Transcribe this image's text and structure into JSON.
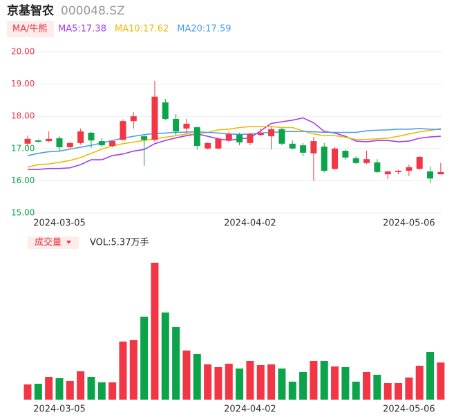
{
  "header": {
    "name": "京基智农",
    "code": "000048.SZ"
  },
  "chart_data": [
    {
      "type": "candlestick",
      "legend_title": "MA/牛熊",
      "up_color": "#f23645",
      "down_color": "#0ba44a",
      "categories": [
        null,
        null,
        null,
        "2024-03-05",
        null,
        null,
        null,
        null,
        null,
        null,
        null,
        null,
        null,
        null,
        null,
        null,
        null,
        null,
        null,
        null,
        null,
        "2024-04-02",
        null,
        null,
        null,
        null,
        null,
        null,
        null,
        null,
        null,
        null,
        null,
        null,
        null,
        null,
        "2024-05-06",
        null,
        null,
        null
      ],
      "open": [
        17.15,
        17.25,
        17.23,
        17.32,
        17.04,
        17.17,
        17.49,
        17.23,
        17.08,
        17.27,
        17.85,
        17.38,
        17.27,
        18.43,
        17.92,
        17.62,
        17.66,
        17.0,
        17.0,
        17.27,
        17.43,
        17.17,
        17.42,
        17.38,
        17.6,
        17.15,
        17.1,
        16.85,
        17.06,
        16.37,
        16.93,
        16.7,
        16.55,
        16.57,
        16.2,
        16.27,
        16.31,
        16.37,
        16.29,
        16.2
      ],
      "high": [
        17.4,
        17.28,
        17.53,
        17.38,
        17.21,
        17.62,
        17.51,
        17.32,
        17.25,
        17.9,
        18.13,
        17.42,
        19.1,
        18.54,
        18.07,
        17.92,
        17.68,
        17.19,
        17.34,
        17.53,
        17.49,
        17.49,
        17.62,
        17.66,
        17.64,
        17.25,
        17.17,
        17.36,
        17.17,
        17.04,
        16.97,
        16.76,
        16.93,
        16.67,
        16.31,
        16.33,
        16.5,
        16.76,
        16.44,
        16.55
      ],
      "low": [
        17.06,
        17.18,
        17.19,
        16.93,
        17.0,
        17.12,
        17.02,
        17.06,
        17.04,
        17.25,
        17.62,
        16.46,
        17.2,
        17.88,
        17.42,
        17.47,
        16.97,
        16.97,
        16.97,
        17.19,
        17.1,
        17.1,
        17.38,
        16.97,
        17.1,
        16.97,
        16.76,
        16.0,
        16.26,
        16.33,
        16.65,
        16.52,
        16.52,
        16.24,
        16.05,
        16.2,
        16.14,
        16.33,
        15.92,
        16.2
      ],
      "close": [
        17.3,
        17.21,
        17.3,
        17.04,
        17.17,
        17.53,
        17.25,
        17.1,
        17.23,
        17.85,
        18.0,
        17.27,
        18.61,
        17.92,
        17.53,
        17.77,
        17.08,
        17.17,
        17.3,
        17.45,
        17.19,
        17.45,
        17.49,
        17.6,
        17.15,
        17.0,
        16.87,
        17.23,
        16.31,
        17.0,
        16.72,
        16.55,
        16.67,
        16.27,
        16.29,
        16.31,
        16.42,
        16.74,
        16.07,
        16.27
      ],
      "series": [
        {
          "name": "MA5:17.38",
          "color": "#a23be8",
          "values": [
            16.35,
            16.35,
            16.38,
            16.38,
            16.4,
            16.5,
            16.65,
            16.65,
            16.78,
            16.83,
            16.92,
            16.97,
            17.15,
            17.25,
            17.33,
            17.4,
            17.45,
            17.38,
            17.3,
            17.25,
            17.3,
            17.33,
            17.55,
            17.78,
            17.83,
            17.88,
            17.95,
            17.8,
            17.53,
            17.48,
            17.38,
            17.23,
            17.21,
            17.25,
            17.25,
            17.21,
            17.23,
            17.32,
            17.36,
            17.38
          ]
        },
        {
          "name": "MA10:17.62",
          "color": "#f2b705",
          "values": [
            16.42,
            16.5,
            16.52,
            16.57,
            16.63,
            16.72,
            16.85,
            16.98,
            17.08,
            17.15,
            17.2,
            17.25,
            17.3,
            17.35,
            17.4,
            17.45,
            17.45,
            17.5,
            17.58,
            17.6,
            17.65,
            17.68,
            17.68,
            17.68,
            17.65,
            17.65,
            17.55,
            17.45,
            17.4,
            17.4,
            17.35,
            17.28,
            17.28,
            17.3,
            17.32,
            17.38,
            17.45,
            17.52,
            17.56,
            17.62
          ]
        },
        {
          "name": "MA20:17.59",
          "color": "#4a9ee8",
          "values": [
            16.78,
            16.85,
            16.9,
            16.92,
            16.98,
            17.04,
            17.1,
            17.17,
            17.25,
            17.32,
            17.38,
            17.43,
            17.47,
            17.48,
            17.5,
            17.51,
            17.52,
            17.5,
            17.48,
            17.45,
            17.44,
            17.45,
            17.48,
            17.5,
            17.52,
            17.53,
            17.53,
            17.52,
            17.5,
            17.5,
            17.5,
            17.5,
            17.55,
            17.57,
            17.58,
            17.6,
            17.6,
            17.62,
            17.6,
            17.59
          ]
        }
      ],
      "ylim": [
        15,
        20.05
      ],
      "yticks": [
        {
          "value": 15,
          "label": "15.00"
        },
        {
          "value": 16,
          "label": "16.00"
        },
        {
          "value": 17,
          "label": "17.00"
        },
        {
          "value": 18,
          "label": "18.00"
        },
        {
          "value": 19,
          "label": "19.00"
        },
        {
          "value": 20,
          "label": "20.00"
        }
      ],
      "grid": true
    },
    {
      "type": "bar",
      "label": "成交量",
      "value_text": "VOL:5.37万手",
      "categories": [
        null,
        null,
        null,
        "2024-03-05",
        null,
        null,
        null,
        null,
        null,
        null,
        null,
        null,
        null,
        null,
        null,
        null,
        null,
        null,
        null,
        null,
        null,
        "2024-04-02",
        null,
        null,
        null,
        null,
        null,
        null,
        null,
        null,
        null,
        null,
        null,
        null,
        null,
        null,
        "2024-05-06",
        null,
        null,
        null
      ],
      "values": [
        2.2,
        2.3,
        3.3,
        3.1,
        2.7,
        4.1,
        3.3,
        2.5,
        2.5,
        8.4,
        8.6,
        12.0,
        19.8,
        12.6,
        10.5,
        7.1,
        6.6,
        5.1,
        4.7,
        5.2,
        4.5,
        5.6,
        5.0,
        5.1,
        4.5,
        2.6,
        4.0,
        5.6,
        5.6,
        4.8,
        4.7,
        2.6,
        4.0,
        3.6,
        2.4,
        2.4,
        3.2,
        4.9,
        6.9,
        5.37
      ],
      "ylim": [
        0,
        20
      ]
    }
  ]
}
